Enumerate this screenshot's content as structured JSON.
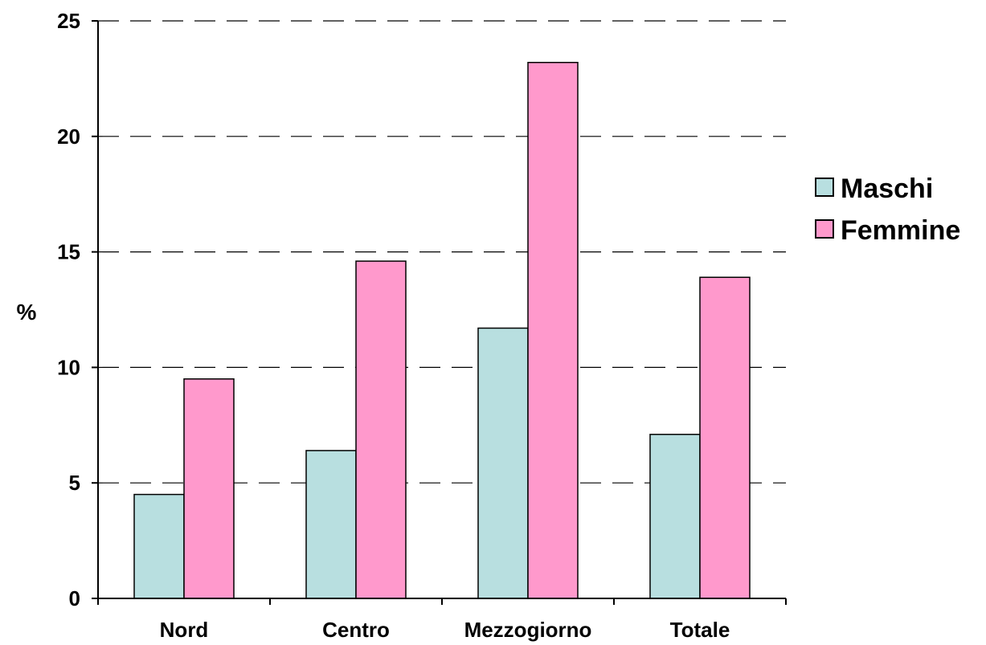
{
  "chart_data": {
    "type": "bar",
    "categories": [
      "Nord",
      "Centro",
      "Mezzogiorno",
      "Totale"
    ],
    "series": [
      {
        "name": "Maschi",
        "values": [
          4.5,
          6.4,
          11.7,
          7.1
        ],
        "color": "#b8dfe0"
      },
      {
        "name": "Femmine",
        "values": [
          9.5,
          14.6,
          23.2,
          13.9
        ],
        "color": "#ff99cc"
      }
    ],
    "title": "",
    "xlabel": "",
    "ylabel": "%",
    "ylim": [
      0,
      25
    ],
    "yticks": [
      0,
      5,
      10,
      15,
      20,
      25
    ],
    "grid": "horizontal dashed",
    "legend_position": "right"
  }
}
